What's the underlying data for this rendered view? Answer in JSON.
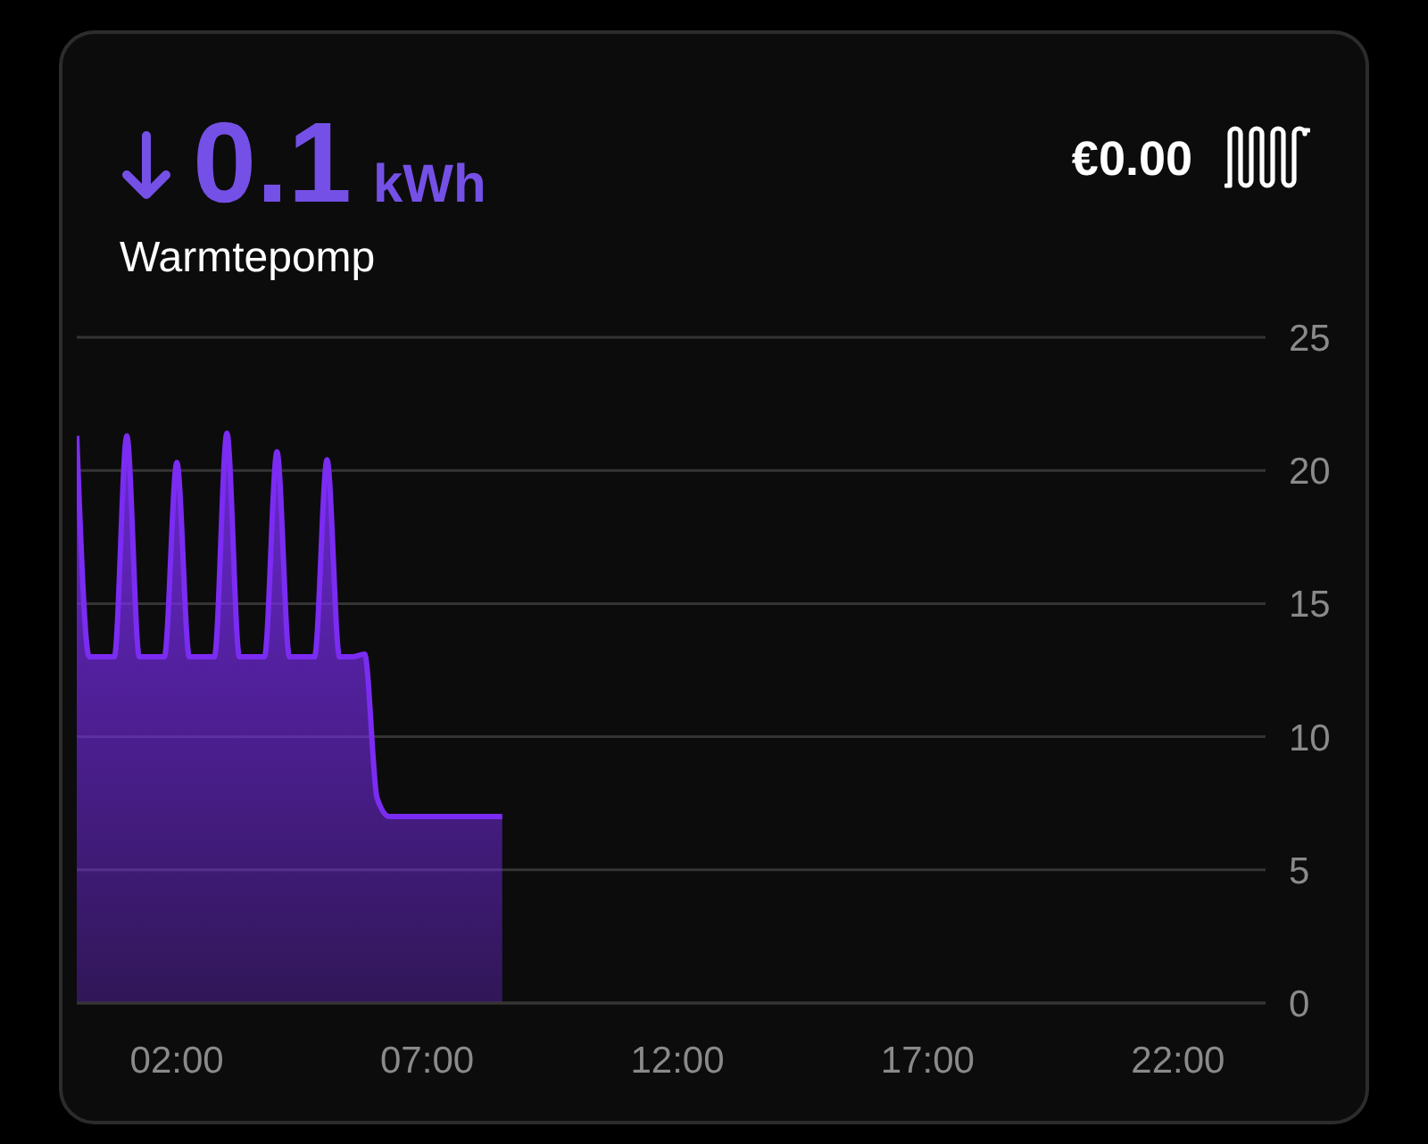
{
  "chart_data": {
    "type": "area",
    "title": "Warmtepomp",
    "annotations": [
      "0.1",
      "kWh",
      "€0.00"
    ],
    "x": [
      0,
      0.25,
      0.5,
      0.75,
      1,
      1.25,
      1.5,
      1.75,
      2,
      2.25,
      2.5,
      2.75,
      3,
      3.25,
      3.5,
      3.75,
      4,
      4.25,
      4.5,
      4.75,
      5,
      5.25,
      5.5,
      5.75,
      6,
      6.25,
      6.5,
      6.75,
      7,
      7.25,
      7.5,
      7.75,
      8,
      8.25,
      8.5
    ],
    "series": [
      {
        "color": "#7b2cf2",
        "values": [
          21.3,
          13,
          13,
          13,
          21.3,
          13,
          13,
          13,
          20.3,
          13,
          13,
          13,
          21.4,
          13,
          13,
          13,
          20.7,
          13,
          13,
          13,
          20.4,
          13,
          13,
          13.1,
          7.7,
          7,
          7,
          7,
          7,
          7,
          7,
          7,
          7,
          7,
          7
        ]
      }
    ],
    "xlim": [
      0,
      23.75
    ],
    "xticks": [
      {
        "value": 2,
        "label": "02:00"
      },
      {
        "value": 7,
        "label": "07:00"
      },
      {
        "value": 12,
        "label": "12:00"
      },
      {
        "value": 17,
        "label": "17:00"
      },
      {
        "value": 22,
        "label": "22:00"
      }
    ],
    "ylim": [
      0,
      25
    ],
    "yticks": [
      0,
      5,
      10,
      15,
      20,
      25
    ],
    "grid": "y"
  }
}
